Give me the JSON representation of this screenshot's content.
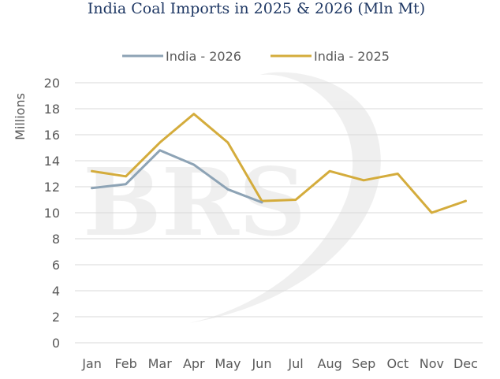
{
  "chart_data": {
    "type": "line",
    "title": "India  Coal Imports in 2025 & 2026 (Mln Mt)",
    "ylabel": "Millions",
    "xlabel": "",
    "categories": [
      "Jan",
      "Feb",
      "Mar",
      "Apr",
      "May",
      "Jun",
      "Jul",
      "Aug",
      "Sep",
      "Oct",
      "Nov",
      "Dec"
    ],
    "ylim": [
      0,
      20
    ],
    "yticks": [
      0,
      2,
      4,
      6,
      8,
      10,
      12,
      14,
      16,
      18,
      20
    ],
    "grid": true,
    "legend_position": "top-center",
    "series": [
      {
        "name": "India - 2026",
        "color": "#8da3b5",
        "values": [
          11.9,
          12.2,
          14.8,
          13.7,
          11.8,
          10.8,
          null,
          null,
          null,
          null,
          null,
          null
        ]
      },
      {
        "name": "India - 2025",
        "color": "#d4ac3c",
        "values": [
          13.2,
          12.8,
          15.4,
          17.6,
          15.4,
          10.9,
          11.0,
          13.2,
          12.5,
          13.0,
          10.0,
          10.9
        ]
      }
    ],
    "watermark": "BRS"
  }
}
